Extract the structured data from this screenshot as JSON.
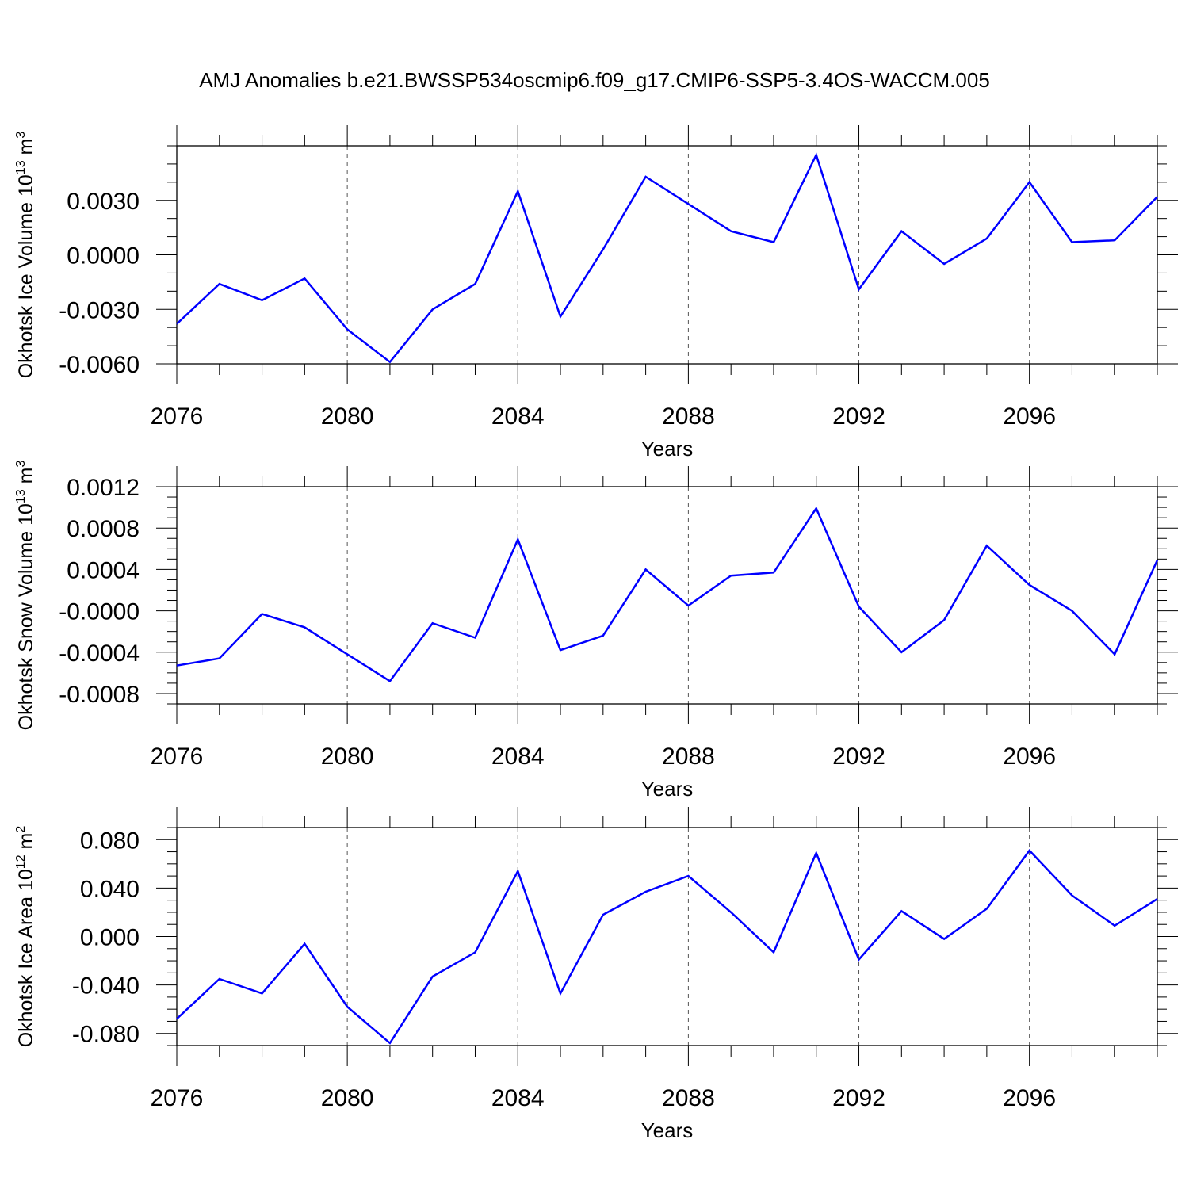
{
  "title": "AMJ Anomalies b.e21.BWSSP534oscmip6.f09_g17.CMIP6-SSP5-3.4OS-WACCM.005",
  "line_color": "#0000ff",
  "chart_data": [
    {
      "type": "line",
      "name": "ice-volume",
      "ylabel": {
        "main": "Okhotsk Ice Volume 10",
        "exponent": "13",
        "unit": " m",
        "unit_exponent": "3"
      },
      "xlabel": "Years",
      "xlim": [
        2076,
        2099
      ],
      "ylim": [
        -0.006,
        0.006
      ],
      "yticks": [
        -0.006,
        -0.003,
        0.0,
        0.003
      ],
      "ytick_labels": [
        "-0.0060",
        "-0.0030",
        "0.0000",
        "0.0030"
      ],
      "yminor_step": 0.001,
      "xticks": [
        2076,
        2080,
        2084,
        2088,
        2092,
        2096
      ],
      "xtick_labels": [
        "2076",
        "2080",
        "2084",
        "2088",
        "2092",
        "2096"
      ],
      "grid_x": [
        2080,
        2084,
        2088,
        2092,
        2096
      ],
      "x": [
        2076,
        2077,
        2078,
        2079,
        2080,
        2081,
        2082,
        2083,
        2084,
        2085,
        2086,
        2087,
        2088,
        2089,
        2090,
        2091,
        2092,
        2093,
        2094,
        2095,
        2096,
        2097,
        2098,
        2099
      ],
      "values": [
        -0.0038,
        -0.0016,
        -0.0025,
        -0.0013,
        -0.0041,
        -0.0059,
        -0.003,
        -0.0016,
        0.0035,
        -0.0034,
        0.0003,
        0.0043,
        0.0028,
        0.0013,
        0.0007,
        0.0055,
        -0.0019,
        0.0013,
        -0.0005,
        0.0009,
        0.004,
        0.0007,
        0.0008,
        0.0032
      ]
    },
    {
      "type": "line",
      "name": "snow-volume",
      "ylabel": {
        "main": "Okhotsk Snow Volume 10",
        "exponent": "13",
        "unit": " m",
        "unit_exponent": "3"
      },
      "xlabel": "Years",
      "xlim": [
        2076,
        2099
      ],
      "ylim": [
        -0.0009,
        0.0012
      ],
      "yticks": [
        -0.0008,
        -0.0004,
        0.0,
        0.0004,
        0.0008,
        0.0012
      ],
      "ytick_labels": [
        "-0.0008",
        "-0.0004",
        "-0.0000",
        "0.0004",
        "0.0008",
        "0.0012"
      ],
      "yminor_step": 0.0001,
      "xticks": [
        2076,
        2080,
        2084,
        2088,
        2092,
        2096
      ],
      "xtick_labels": [
        "2076",
        "2080",
        "2084",
        "2088",
        "2092",
        "2096"
      ],
      "grid_x": [
        2080,
        2084,
        2088,
        2092,
        2096
      ],
      "x": [
        2076,
        2077,
        2078,
        2079,
        2080,
        2081,
        2082,
        2083,
        2084,
        2085,
        2086,
        2087,
        2088,
        2089,
        2090,
        2091,
        2092,
        2093,
        2094,
        2095,
        2096,
        2097,
        2098,
        2099
      ],
      "values": [
        -0.00053,
        -0.00046,
        -3e-05,
        -0.00016,
        -0.00042,
        -0.00068,
        -0.00012,
        -0.00026,
        0.00069,
        -0.00038,
        -0.00024,
        0.0004,
        5e-05,
        0.00034,
        0.00037,
        0.00099,
        4e-05,
        -0.0004,
        -9e-05,
        0.00063,
        0.00025,
        0.0,
        -0.00042,
        0.00049
      ]
    },
    {
      "type": "line",
      "name": "ice-area",
      "ylabel": {
        "main": "Okhotsk Ice Area 10",
        "exponent": "12",
        "unit": " m",
        "unit_exponent": "2"
      },
      "xlabel": "Years",
      "xlim": [
        2076,
        2099
      ],
      "ylim": [
        -0.09,
        0.09
      ],
      "yticks": [
        -0.08,
        -0.04,
        0.0,
        0.04,
        0.08
      ],
      "ytick_labels": [
        "-0.080",
        "-0.040",
        "0.000",
        "0.040",
        "0.080"
      ],
      "yminor_step": 0.01,
      "xticks": [
        2076,
        2080,
        2084,
        2088,
        2092,
        2096
      ],
      "xtick_labels": [
        "2076",
        "2080",
        "2084",
        "2088",
        "2092",
        "2096"
      ],
      "grid_x": [
        2080,
        2084,
        2088,
        2092,
        2096
      ],
      "x": [
        2076,
        2077,
        2078,
        2079,
        2080,
        2081,
        2082,
        2083,
        2084,
        2085,
        2086,
        2087,
        2088,
        2089,
        2090,
        2091,
        2092,
        2093,
        2094,
        2095,
        2096,
        2097,
        2098,
        2099
      ],
      "values": [
        -0.068,
        -0.035,
        -0.047,
        -0.006,
        -0.058,
        -0.088,
        -0.033,
        -0.013,
        0.054,
        -0.047,
        0.018,
        0.037,
        0.05,
        0.02,
        -0.013,
        0.069,
        -0.019,
        0.021,
        -0.002,
        0.023,
        0.071,
        0.034,
        0.009,
        0.031
      ]
    }
  ]
}
